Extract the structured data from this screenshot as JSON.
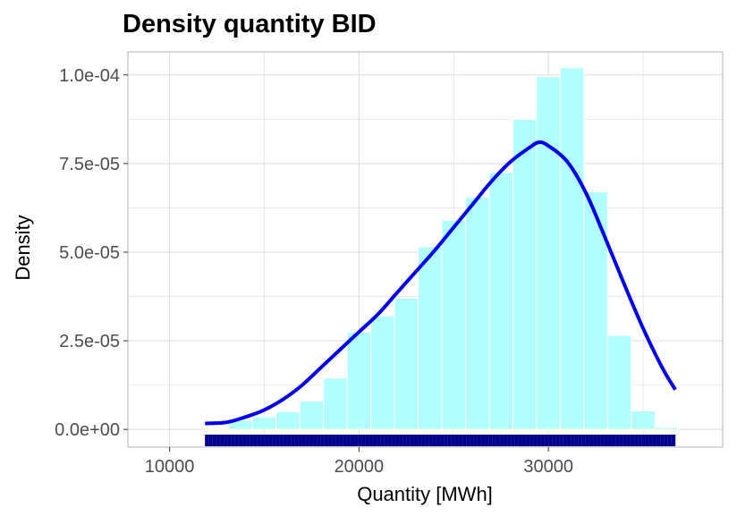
{
  "chart_data": {
    "type": "histogram",
    "title": "Density quantity BID",
    "xlabel": "Quantity [MWh]",
    "ylabel": "Density",
    "xlim": [
      7800,
      39200
    ],
    "ylim": [
      -5e-06,
      0.0001065
    ],
    "x_ticks": [
      10000,
      20000,
      30000
    ],
    "x_tick_labels": [
      "10000",
      "20000",
      "30000"
    ],
    "y_ticks": [
      0,
      2.5e-05,
      5e-05,
      7.5e-05,
      0.0001
    ],
    "y_tick_labels": [
      "0.0e+00",
      "2.5e-05",
      "5.0e-05",
      "7.5e-05",
      "1.0e-04"
    ],
    "bin_width": 1250,
    "bins": [
      {
        "x0": 11875,
        "x1": 13125,
        "density": 2e-07
      },
      {
        "x0": 13125,
        "x1": 14375,
        "density": 2.5e-06
      },
      {
        "x0": 14375,
        "x1": 15625,
        "density": 3.5e-06
      },
      {
        "x0": 15625,
        "x1": 16875,
        "density": 5e-06
      },
      {
        "x0": 16875,
        "x1": 18125,
        "density": 8e-06
      },
      {
        "x0": 18125,
        "x1": 19375,
        "density": 1.45e-05
      },
      {
        "x0": 19375,
        "x1": 20625,
        "density": 2.75e-05
      },
      {
        "x0": 20625,
        "x1": 21875,
        "density": 3.2e-05
      },
      {
        "x0": 21875,
        "x1": 23125,
        "density": 3.7e-05
      },
      {
        "x0": 23125,
        "x1": 24375,
        "density": 5.15e-05
      },
      {
        "x0": 24375,
        "x1": 25625,
        "density": 5.9e-05
      },
      {
        "x0": 25625,
        "x1": 26875,
        "density": 6.55e-05
      },
      {
        "x0": 26875,
        "x1": 28125,
        "density": 7.25e-05
      },
      {
        "x0": 28125,
        "x1": 29375,
        "density": 8.75e-05
      },
      {
        "x0": 29375,
        "x1": 30625,
        "density": 9.95e-05
      },
      {
        "x0": 30625,
        "x1": 31875,
        "density": 0.000102
      },
      {
        "x0": 31875,
        "x1": 33125,
        "density": 6.7e-05
      },
      {
        "x0": 33125,
        "x1": 34375,
        "density": 2.65e-05
      },
      {
        "x0": 34375,
        "x1": 35625,
        "density": 5.2e-06
      },
      {
        "x0": 35625,
        "x1": 36875,
        "density": 6e-07
      }
    ],
    "density_curve": {
      "x": [
        11875,
        13000,
        14000,
        15000,
        16000,
        17000,
        18000,
        19000,
        20000,
        21000,
        22000,
        23000,
        24000,
        25000,
        26000,
        27000,
        28000,
        29000,
        29500,
        30000,
        31000,
        32000,
        33000,
        34000,
        35000,
        36000,
        36700
      ],
      "y": [
        1.7e-06,
        2e-06,
        3.5e-06,
        5.5e-06,
        8.5e-06,
        1.25e-05,
        1.75e-05,
        2.25e-05,
        2.75e-05,
        3.25e-05,
        3.85e-05,
        4.45e-05,
        5.05e-05,
        5.7e-05,
        6.35e-05,
        7e-05,
        7.55e-05,
        7.95e-05,
        8.1e-05,
        8e-05,
        7.55e-05,
        6.65e-05,
        5.4e-05,
        4.1e-05,
        2.85e-05,
        1.75e-05,
        1.12e-05
      ]
    },
    "rug": {
      "x_min": 11875,
      "x_max": 36700
    },
    "colors": {
      "bar_fill": "#b2ffff",
      "bar_stroke": "#ffffff",
      "curve": "#0000ee",
      "rug": "#00008b",
      "grid": "#dddddd",
      "panel_border": "#b3b3b3"
    },
    "grid": true,
    "legend": "none"
  }
}
